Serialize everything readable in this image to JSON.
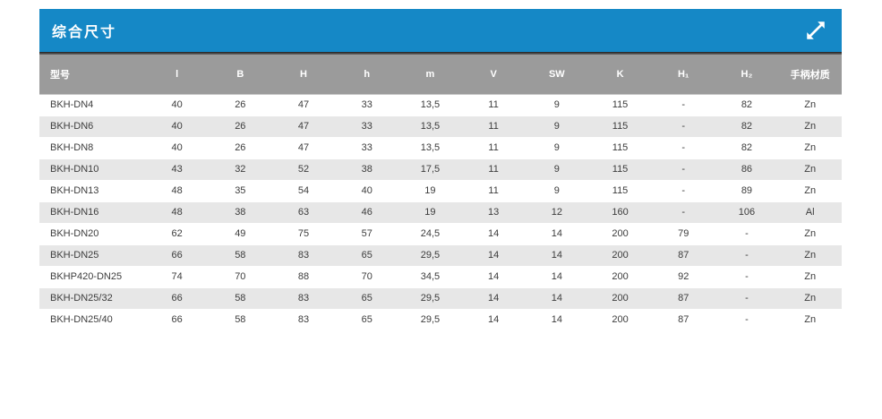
{
  "panel": {
    "title": "综合尺寸"
  },
  "icons": {
    "expand_icon": "diagonal-double-arrow-expand"
  },
  "colors": {
    "accent_blue": "#1588c6",
    "header_gray": "#9b9b9b",
    "stripe_gray": "#e7e7e7",
    "dark_band": "#1f1f1f",
    "text": "#3c3c3c",
    "header_text": "#ffffff"
  },
  "table": {
    "columns": [
      "型号",
      "l",
      "B",
      "H",
      "h",
      "m",
      "V",
      "SW",
      "K",
      "H₁",
      "H₂",
      "手柄材质"
    ],
    "rows": [
      [
        "BKH-DN4",
        "40",
        "26",
        "47",
        "33",
        "13,5",
        "11",
        "9",
        "115",
        "-",
        "82",
        "Zn"
      ],
      [
        "BKH-DN6",
        "40",
        "26",
        "47",
        "33",
        "13,5",
        "11",
        "9",
        "115",
        "-",
        "82",
        "Zn"
      ],
      [
        "BKH-DN8",
        "40",
        "26",
        "47",
        "33",
        "13,5",
        "11",
        "9",
        "115",
        "-",
        "82",
        "Zn"
      ],
      [
        "BKH-DN10",
        "43",
        "32",
        "52",
        "38",
        "17,5",
        "11",
        "9",
        "115",
        "-",
        "86",
        "Zn"
      ],
      [
        "BKH-DN13",
        "48",
        "35",
        "54",
        "40",
        "19",
        "11",
        "9",
        "115",
        "-",
        "89",
        "Zn"
      ],
      [
        "BKH-DN16",
        "48",
        "38",
        "63",
        "46",
        "19",
        "13",
        "12",
        "160",
        "-",
        "106",
        "Al"
      ],
      [
        "BKH-DN20",
        "62",
        "49",
        "75",
        "57",
        "24,5",
        "14",
        "14",
        "200",
        "79",
        "-",
        "Zn"
      ],
      [
        "BKH-DN25",
        "66",
        "58",
        "83",
        "65",
        "29,5",
        "14",
        "14",
        "200",
        "87",
        "-",
        "Zn"
      ],
      [
        "BKHP420-DN25",
        "74",
        "70",
        "88",
        "70",
        "34,5",
        "14",
        "14",
        "200",
        "92",
        "-",
        "Zn"
      ],
      [
        "BKH-DN25/32",
        "66",
        "58",
        "83",
        "65",
        "29,5",
        "14",
        "14",
        "200",
        "87",
        "-",
        "Zn"
      ],
      [
        "BKH-DN25/40",
        "66",
        "58",
        "83",
        "65",
        "29,5",
        "14",
        "14",
        "200",
        "87",
        "-",
        "Zn"
      ]
    ]
  }
}
